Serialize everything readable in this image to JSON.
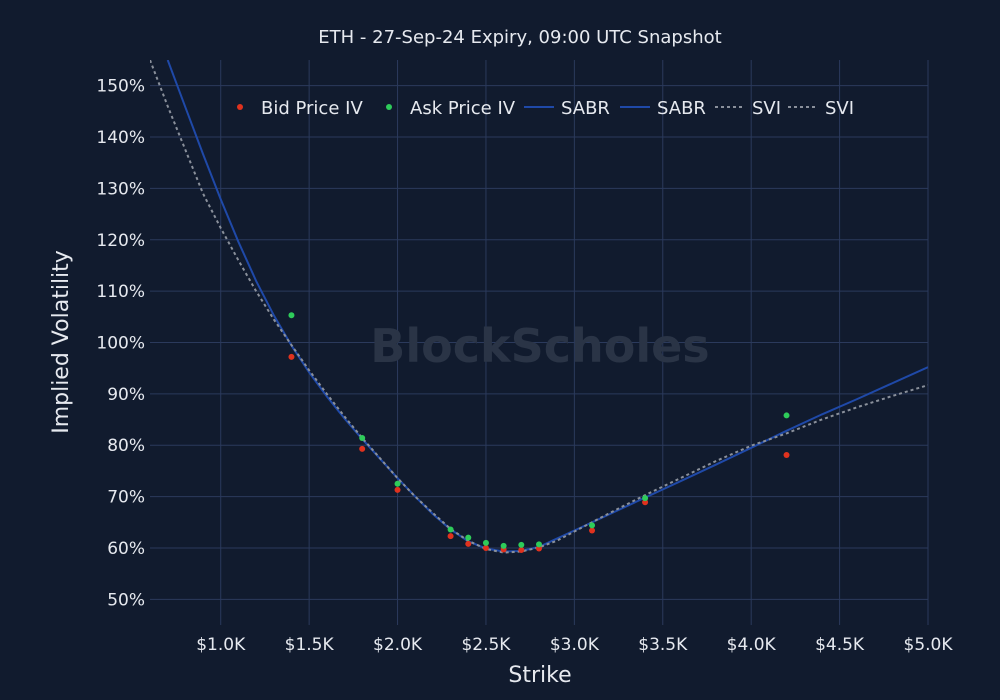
{
  "chart_data": {
    "type": "scatter",
    "title": "ETH - 27-Sep-24 Expiry, 09:00 UTC Snapshot",
    "xlabel": "Strike",
    "ylabel": "Implied Volatility",
    "xlim": [
      600,
      5000
    ],
    "ylim": [
      45,
      155
    ],
    "x_ticks": [
      1000,
      1500,
      2000,
      2500,
      3000,
      3500,
      4000,
      4500,
      5000
    ],
    "x_tick_labels": [
      "$1.0K",
      "$1.5K",
      "$2.0K",
      "$2.5K",
      "$3.0K",
      "$3.5K",
      "$4.0K",
      "$4.5K",
      "$5.0K"
    ],
    "y_ticks": [
      50,
      60,
      70,
      80,
      90,
      100,
      110,
      120,
      130,
      140,
      150
    ],
    "y_tick_labels": [
      "50%",
      "60%",
      "70%",
      "80%",
      "90%",
      "100%",
      "110%",
      "120%",
      "130%",
      "140%",
      "150%"
    ],
    "grid": true,
    "legend_position": "top",
    "watermark": "BlockScholes",
    "series": [
      {
        "name": "Bid Price IV",
        "kind": "markers",
        "color": "#e0321e",
        "points": [
          [
            1400,
            97.2
          ],
          [
            1800,
            79.3
          ],
          [
            2000,
            71.3
          ],
          [
            2300,
            62.3
          ],
          [
            2400,
            60.8
          ],
          [
            2500,
            60.0
          ],
          [
            2600,
            59.7
          ],
          [
            2700,
            59.6
          ],
          [
            2800,
            59.9
          ],
          [
            3100,
            63.4
          ],
          [
            3400,
            68.9
          ],
          [
            4200,
            78.1
          ]
        ]
      },
      {
        "name": "Ask Price IV",
        "kind": "markers",
        "color": "#2ecc5a",
        "points": [
          [
            1400,
            105.3
          ],
          [
            1800,
            81.4
          ],
          [
            2000,
            72.5
          ],
          [
            2300,
            63.6
          ],
          [
            2400,
            62.0
          ],
          [
            2500,
            61.0
          ],
          [
            2600,
            60.4
          ],
          [
            2700,
            60.6
          ],
          [
            2800,
            60.7
          ],
          [
            3100,
            64.4
          ],
          [
            3400,
            69.7
          ],
          [
            4200,
            85.8
          ]
        ]
      },
      {
        "name": "SABR",
        "kind": "line",
        "color": "#1f49a8",
        "dash": "solid",
        "points": [
          [
            700,
            155
          ],
          [
            800,
            145.8
          ],
          [
            900,
            136.7
          ],
          [
            1000,
            127.9
          ],
          [
            1100,
            119.6
          ],
          [
            1200,
            112.0
          ],
          [
            1300,
            105.3
          ],
          [
            1400,
            99.4
          ],
          [
            1500,
            94.2
          ],
          [
            1600,
            89.5
          ],
          [
            1700,
            85.2
          ],
          [
            1800,
            81.2
          ],
          [
            1900,
            77.4
          ],
          [
            2000,
            73.6
          ],
          [
            2100,
            70.0
          ],
          [
            2200,
            66.6
          ],
          [
            2300,
            63.6
          ],
          [
            2400,
            61.3
          ],
          [
            2500,
            59.9
          ],
          [
            2600,
            59.3
          ],
          [
            2700,
            59.4
          ],
          [
            2800,
            60.2
          ],
          [
            2900,
            61.8
          ],
          [
            3000,
            63.4
          ],
          [
            3200,
            66.6
          ],
          [
            3400,
            69.8
          ],
          [
            3600,
            73.0
          ],
          [
            3800,
            76.2
          ],
          [
            4000,
            79.5
          ],
          [
            4200,
            82.8
          ],
          [
            4400,
            86.0
          ],
          [
            4600,
            89.0
          ],
          [
            4800,
            92.1
          ],
          [
            5000,
            95.2
          ]
        ]
      },
      {
        "name": "SABR",
        "kind": "line",
        "color": "#1f49a8",
        "dash": "solid",
        "legend_only": true,
        "points": []
      },
      {
        "name": "SVI",
        "kind": "line",
        "color": "#8a909b",
        "dash": "dot",
        "points": [
          [
            600,
            155
          ],
          [
            700,
            146.0
          ],
          [
            800,
            137.5
          ],
          [
            900,
            129.0
          ],
          [
            1000,
            122.3
          ],
          [
            1100,
            116.0
          ],
          [
            1200,
            110.0
          ],
          [
            1300,
            104.5
          ],
          [
            1400,
            99.5
          ],
          [
            1500,
            94.6
          ],
          [
            1600,
            90.0
          ],
          [
            1700,
            85.6
          ],
          [
            1800,
            81.4
          ],
          [
            1900,
            77.5
          ],
          [
            2000,
            73.6
          ],
          [
            2100,
            70.0
          ],
          [
            2200,
            66.8
          ],
          [
            2300,
            63.7
          ],
          [
            2400,
            61.4
          ],
          [
            2500,
            59.8
          ],
          [
            2600,
            59.1
          ],
          [
            2700,
            59.3
          ],
          [
            2800,
            60.1
          ],
          [
            2900,
            61.4
          ],
          [
            3000,
            63.2
          ],
          [
            3200,
            66.8
          ],
          [
            3400,
            70.3
          ],
          [
            3600,
            73.6
          ],
          [
            3800,
            76.9
          ],
          [
            4000,
            79.9
          ],
          [
            4200,
            82.3
          ],
          [
            4400,
            85.0
          ],
          [
            4600,
            87.4
          ],
          [
            4800,
            89.6
          ],
          [
            5000,
            91.7
          ]
        ]
      },
      {
        "name": "SVI",
        "kind": "line",
        "color": "#8a909b",
        "dash": "dot",
        "legend_only": true,
        "points": []
      }
    ]
  }
}
